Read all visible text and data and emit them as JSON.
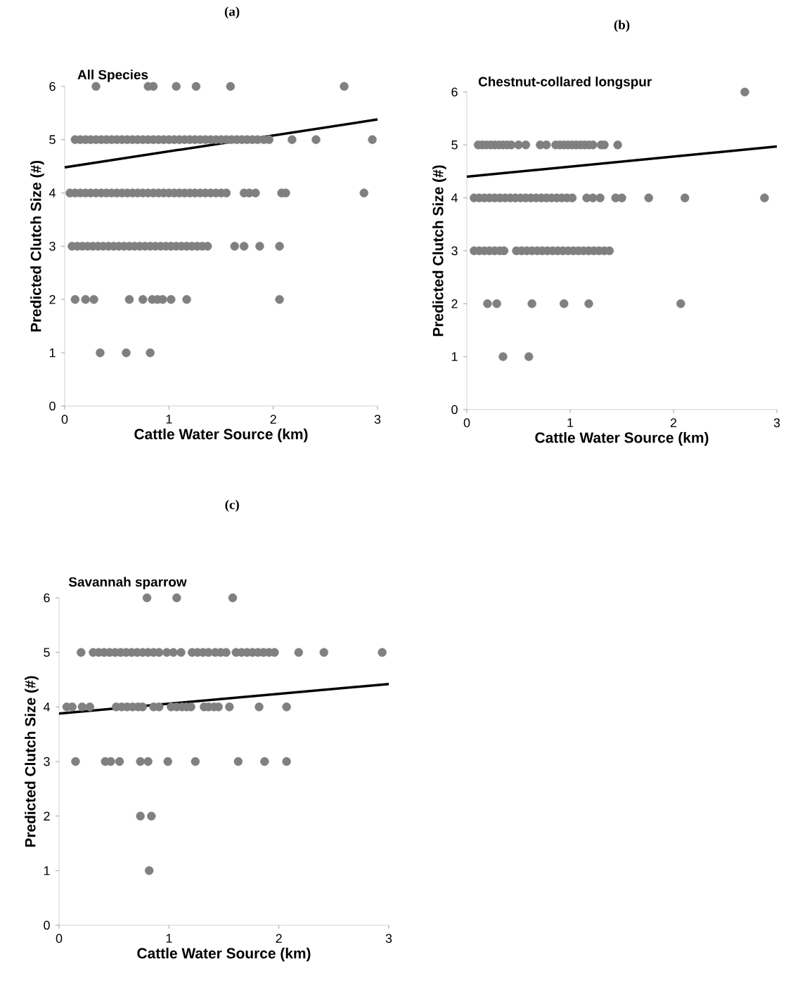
{
  "chart_data": [
    {
      "type": "scatter",
      "title": "(a)",
      "subtitle": "All Species",
      "xlabel": "Cattle Water Source (km)",
      "ylabel": "Predicted Clutch Size (#)",
      "xlim": [
        0,
        3
      ],
      "ylim": [
        0,
        6
      ],
      "xticks": [
        0,
        1,
        2,
        3
      ],
      "yticks": [
        0,
        1,
        2,
        3,
        4,
        5,
        6
      ],
      "marker": "circle",
      "series": [
        {
          "color": "#808080",
          "x": [
            0.3,
            0.8,
            0.85,
            1.07,
            1.26,
            1.59,
            2.68
          ],
          "values": [
            6,
            6,
            6,
            6,
            6,
            6,
            6
          ]
        },
        {
          "color": "#808080",
          "x": [
            0.1,
            0.15,
            0.2,
            0.25,
            0.3,
            0.35,
            0.4,
            0.45,
            0.5,
            0.55,
            0.6,
            0.65,
            0.7,
            0.75,
            0.8,
            0.85,
            0.9,
            0.95,
            1.0,
            1.05,
            1.1,
            1.15,
            1.2,
            1.25,
            1.3,
            1.35,
            1.4,
            1.45,
            1.5,
            1.55,
            1.6,
            1.65,
            1.7,
            1.75,
            1.8,
            1.85,
            1.91,
            1.96,
            2.18,
            2.41,
            2.95
          ],
          "values": [
            5,
            5,
            5,
            5,
            5,
            5,
            5,
            5,
            5,
            5,
            5,
            5,
            5,
            5,
            5,
            5,
            5,
            5,
            5,
            5,
            5,
            5,
            5,
            5,
            5,
            5,
            5,
            5,
            5,
            5,
            5,
            5,
            5,
            5,
            5,
            5,
            5,
            5,
            5,
            5,
            5
          ]
        },
        {
          "color": "#808080",
          "x": [
            0.05,
            0.1,
            0.15,
            0.2,
            0.25,
            0.3,
            0.35,
            0.4,
            0.45,
            0.5,
            0.55,
            0.6,
            0.65,
            0.7,
            0.75,
            0.8,
            0.85,
            0.9,
            0.95,
            1.0,
            1.05,
            1.1,
            1.15,
            1.2,
            1.25,
            1.3,
            1.35,
            1.4,
            1.45,
            1.5,
            1.55,
            1.72,
            1.77,
            1.83,
            2.08,
            2.12,
            2.87
          ],
          "values": [
            4,
            4,
            4,
            4,
            4,
            4,
            4,
            4,
            4,
            4,
            4,
            4,
            4,
            4,
            4,
            4,
            4,
            4,
            4,
            4,
            4,
            4,
            4,
            4,
            4,
            4,
            4,
            4,
            4,
            4,
            4,
            4,
            4,
            4,
            4,
            4,
            4
          ]
        },
        {
          "color": "#808080",
          "x": [
            0.07,
            0.12,
            0.17,
            0.22,
            0.27,
            0.32,
            0.37,
            0.42,
            0.47,
            0.52,
            0.57,
            0.62,
            0.67,
            0.72,
            0.77,
            0.82,
            0.87,
            0.92,
            0.97,
            1.02,
            1.07,
            1.12,
            1.17,
            1.22,
            1.27,
            1.32,
            1.37,
            1.63,
            1.72,
            1.87,
            2.06
          ],
          "values": [
            3,
            3,
            3,
            3,
            3,
            3,
            3,
            3,
            3,
            3,
            3,
            3,
            3,
            3,
            3,
            3,
            3,
            3,
            3,
            3,
            3,
            3,
            3,
            3,
            3,
            3,
            3,
            3,
            3,
            3,
            3
          ]
        },
        {
          "color": "#808080",
          "x": [
            0.1,
            0.2,
            0.28,
            0.62,
            0.75,
            0.84,
            0.89,
            0.94,
            1.02,
            1.17,
            2.06
          ],
          "values": [
            2,
            2,
            2,
            2,
            2,
            2,
            2,
            2,
            2,
            2,
            2
          ]
        },
        {
          "color": "#808080",
          "x": [
            0.34,
            0.59,
            0.82
          ],
          "values": [
            1,
            1,
            1
          ]
        },
        {
          "type": "line",
          "color": "#000000",
          "x": [
            0,
            3
          ],
          "values": [
            4.48,
            5.38
          ],
          "marker": "none"
        }
      ]
    },
    {
      "type": "scatter",
      "title": "(b)",
      "subtitle": "Chestnut-collared longspur",
      "xlabel": "Cattle Water Source (km)",
      "ylabel": "Predicted Clutch Size (#)",
      "xlim": [
        0,
        3
      ],
      "ylim": [
        0,
        6
      ],
      "xticks": [
        0,
        1,
        2,
        3
      ],
      "yticks": [
        0,
        1,
        2,
        3,
        4,
        5,
        6
      ],
      "marker": "circle",
      "series": [
        {
          "color": "#808080",
          "x": [
            2.69
          ],
          "values": [
            6
          ]
        },
        {
          "color": "#808080",
          "x": [
            0.11,
            0.15,
            0.19,
            0.23,
            0.27,
            0.31,
            0.35,
            0.39,
            0.43,
            0.5,
            0.57,
            0.71,
            0.77,
            0.86,
            0.9,
            0.94,
            0.98,
            1.02,
            1.06,
            1.1,
            1.14,
            1.18,
            1.22,
            1.3,
            1.33,
            1.46
          ],
          "values": [
            5,
            5,
            5,
            5,
            5,
            5,
            5,
            5,
            5,
            5,
            5,
            5,
            5,
            5,
            5,
            5,
            5,
            5,
            5,
            5,
            5,
            5,
            5,
            5,
            5,
            5
          ]
        },
        {
          "color": "#808080",
          "x": [
            0.07,
            0.12,
            0.17,
            0.22,
            0.27,
            0.32,
            0.37,
            0.42,
            0.47,
            0.52,
            0.57,
            0.62,
            0.67,
            0.72,
            0.77,
            0.82,
            0.87,
            0.92,
            0.97,
            1.02,
            1.16,
            1.22,
            1.29,
            1.44,
            1.5,
            1.76,
            2.11,
            2.88
          ],
          "values": [
            4,
            4,
            4,
            4,
            4,
            4,
            4,
            4,
            4,
            4,
            4,
            4,
            4,
            4,
            4,
            4,
            4,
            4,
            4,
            4,
            4,
            4,
            4,
            4,
            4,
            4,
            4,
            4
          ]
        },
        {
          "color": "#808080",
          "x": [
            0.07,
            0.12,
            0.17,
            0.22,
            0.27,
            0.32,
            0.36,
            0.48,
            0.53,
            0.58,
            0.63,
            0.68,
            0.73,
            0.78,
            0.83,
            0.88,
            0.93,
            0.98,
            1.03,
            1.08,
            1.13,
            1.18,
            1.23,
            1.28,
            1.33,
            1.38
          ],
          "values": [
            3,
            3,
            3,
            3,
            3,
            3,
            3,
            3,
            3,
            3,
            3,
            3,
            3,
            3,
            3,
            3,
            3,
            3,
            3,
            3,
            3,
            3,
            3,
            3,
            3,
            3
          ]
        },
        {
          "color": "#808080",
          "x": [
            0.2,
            0.29,
            0.63,
            0.94,
            1.18,
            2.07
          ],
          "values": [
            2,
            2,
            2,
            2,
            2,
            2
          ]
        },
        {
          "color": "#808080",
          "x": [
            0.35,
            0.6
          ],
          "values": [
            1,
            1
          ]
        },
        {
          "type": "line",
          "color": "#000000",
          "x": [
            0,
            3
          ],
          "values": [
            4.4,
            4.97
          ],
          "marker": "none"
        }
      ]
    },
    {
      "type": "scatter",
      "title": "(c)",
      "subtitle": "Savannah sparrow",
      "xlabel": "Cattle Water Source (km)",
      "ylabel": "Predicted Clutch Size (#)",
      "xlim": [
        0,
        3
      ],
      "ylim": [
        0,
        6
      ],
      "xticks": [
        0,
        1,
        2,
        3
      ],
      "yticks": [
        0,
        1,
        2,
        3,
        4,
        5,
        6
      ],
      "marker": "circle",
      "series": [
        {
          "color": "#808080",
          "x": [
            0.8,
            1.07,
            1.58
          ],
          "values": [
            6,
            6,
            6
          ]
        },
        {
          "color": "#808080",
          "x": [
            0.2,
            0.31,
            0.36,
            0.41,
            0.46,
            0.51,
            0.56,
            0.61,
            0.66,
            0.71,
            0.76,
            0.81,
            0.86,
            0.91,
            0.98,
            1.04,
            1.11,
            1.21,
            1.26,
            1.31,
            1.36,
            1.42,
            1.47,
            1.52,
            1.61,
            1.66,
            1.71,
            1.76,
            1.81,
            1.86,
            1.91,
            1.96,
            2.18,
            2.41,
            2.94
          ],
          "values": [
            5,
            5,
            5,
            5,
            5,
            5,
            5,
            5,
            5,
            5,
            5,
            5,
            5,
            5,
            5,
            5,
            5,
            5,
            5,
            5,
            5,
            5,
            5,
            5,
            5,
            5,
            5,
            5,
            5,
            5,
            5,
            5,
            5,
            5,
            5
          ]
        },
        {
          "color": "#808080",
          "x": [
            0.07,
            0.12,
            0.21,
            0.28,
            0.52,
            0.57,
            0.62,
            0.67,
            0.72,
            0.76,
            0.86,
            0.91,
            1.02,
            1.07,
            1.12,
            1.16,
            1.2,
            1.32,
            1.36,
            1.41,
            1.45,
            1.55,
            1.82,
            2.07
          ],
          "values": [
            4,
            4,
            4,
            4,
            4,
            4,
            4,
            4,
            4,
            4,
            4,
            4,
            4,
            4,
            4,
            4,
            4,
            4,
            4,
            4,
            4,
            4,
            4,
            4
          ]
        },
        {
          "color": "#808080",
          "x": [
            0.15,
            0.42,
            0.47,
            0.55,
            0.74,
            0.81,
            0.99,
            1.24,
            1.63,
            1.87,
            2.07
          ],
          "values": [
            3,
            3,
            3,
            3,
            3,
            3,
            3,
            3,
            3,
            3,
            3
          ]
        },
        {
          "color": "#808080",
          "x": [
            0.74,
            0.84
          ],
          "values": [
            2,
            2
          ]
        },
        {
          "color": "#808080",
          "x": [
            0.82
          ],
          "values": [
            1
          ]
        },
        {
          "type": "line",
          "color": "#000000",
          "x": [
            0,
            3
          ],
          "values": [
            3.88,
            4.42
          ],
          "marker": "none"
        }
      ]
    }
  ]
}
